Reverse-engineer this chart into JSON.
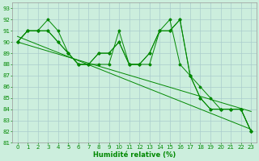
{
  "xlabel": "Humidité relative (%)",
  "background_color": "#cceedd",
  "grid_color": "#aacccc",
  "line_color": "#008800",
  "xlim": [
    -0.5,
    23.5
  ],
  "ylim": [
    81,
    93.5
  ],
  "xticks": [
    0,
    1,
    2,
    3,
    4,
    5,
    6,
    7,
    8,
    9,
    10,
    11,
    12,
    13,
    14,
    15,
    16,
    17,
    18,
    19,
    20,
    21,
    22,
    23
  ],
  "yticks": [
    81,
    82,
    83,
    84,
    85,
    86,
    87,
    88,
    89,
    90,
    91,
    92,
    93
  ],
  "series1": [
    90,
    91,
    91,
    92,
    91,
    89,
    88,
    88,
    88,
    88,
    91,
    88,
    88,
    88,
    91,
    92,
    88,
    87,
    85,
    84,
    84,
    84,
    84,
    82
  ],
  "series2": [
    90,
    91,
    91,
    91,
    90,
    89,
    88,
    88,
    89,
    89,
    90,
    88,
    88,
    89,
    91,
    91,
    92,
    87,
    85,
    84,
    84,
    84,
    84,
    82
  ],
  "series3": [
    90,
    91,
    91,
    91,
    90,
    89,
    88,
    88,
    89,
    89,
    90,
    88,
    88,
    89,
    91,
    91,
    92,
    87,
    86,
    85,
    84,
    84,
    84,
    82
  ],
  "trend1": [
    90.5,
    82.2
  ],
  "trend2": [
    90.0,
    83.8
  ],
  "xlabel_fontsize": 6,
  "tick_fontsize": 5
}
